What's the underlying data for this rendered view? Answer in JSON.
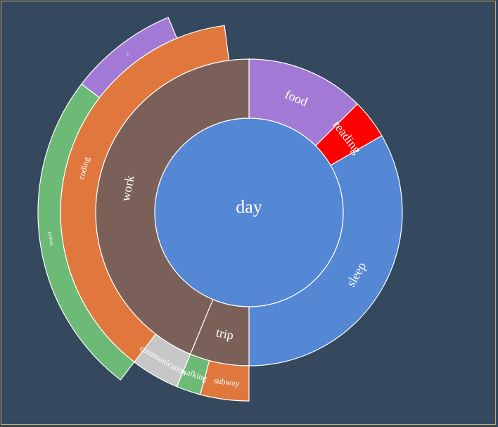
{
  "chart_data": {
    "type": "sunburst",
    "title": "",
    "root": {
      "name": "day",
      "color": "#5487d4",
      "children": [
        {
          "name": "food",
          "value": 3,
          "color": "#a27ad6"
        },
        {
          "name": "reading",
          "value": 1,
          "color": "#ff0000"
        },
        {
          "name": "sleep",
          "value": 8,
          "color": "#5487d4"
        },
        {
          "name": "trip",
          "value": 1.5,
          "color": "#7b6059",
          "children": [
            {
              "name": "subway",
              "value": 1,
              "color": "#e0783e"
            },
            {
              "name": "walking",
              "value": 0.5,
              "color": "#6cba75"
            }
          ]
        },
        {
          "name": "work",
          "value": 10.5,
          "color": "#7b6059",
          "children": [
            {
              "name": "communication",
              "value": 1,
              "color": "#c7c7c7"
            },
            {
              "name": "coding",
              "value": 9,
              "color": "#e0783e",
              "children": [
                {
                  "name": "python",
                  "value": 6,
                  "color": "#6cba75"
                },
                {
                  "name": "c",
                  "value": 2,
                  "color": "#a27ad6"
                }
              ]
            }
          ]
        }
      ]
    }
  }
}
